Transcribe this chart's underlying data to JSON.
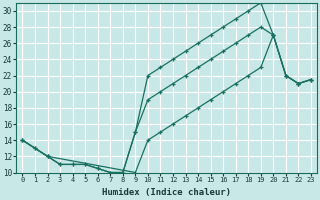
{
  "xlabel": "Humidex (Indice chaleur)",
  "bg_color": "#c8e8e8",
  "grid_color": "#ffffff",
  "line_color": "#1a7060",
  "xlim": [
    -0.5,
    23.5
  ],
  "ylim": [
    10,
    31
  ],
  "xticks": [
    0,
    1,
    2,
    3,
    4,
    5,
    6,
    7,
    8,
    9,
    10,
    11,
    12,
    13,
    14,
    15,
    16,
    17,
    18,
    19,
    20,
    21,
    22,
    23
  ],
  "yticks": [
    10,
    12,
    14,
    16,
    18,
    20,
    22,
    24,
    26,
    28,
    30
  ],
  "line1_x": [
    0,
    1,
    2,
    3,
    4,
    5,
    6,
    7,
    8,
    9,
    10,
    11,
    12,
    13,
    14,
    15,
    16,
    17,
    18,
    19,
    20,
    21,
    22,
    23
  ],
  "line1_y": [
    14,
    13,
    12,
    11,
    11,
    11,
    10.5,
    10,
    10,
    15,
    19,
    20,
    21,
    22,
    23,
    24,
    25,
    26,
    27,
    28,
    27,
    22,
    21,
    21.5
  ],
  "line2_x": [
    0,
    1,
    2,
    3,
    4,
    5,
    6,
    7,
    8,
    9,
    10,
    11,
    12,
    13,
    14,
    15,
    16,
    17,
    18,
    19,
    20,
    21,
    22,
    23
  ],
  "line2_y": [
    14,
    13,
    12,
    11,
    11,
    11,
    10.5,
    10,
    10,
    15,
    22,
    23,
    24,
    25,
    26,
    27,
    28,
    29,
    30,
    31,
    27,
    22,
    21,
    21.5
  ],
  "line3_x": [
    0,
    2,
    9,
    10,
    11,
    12,
    13,
    14,
    15,
    16,
    17,
    18,
    19,
    20,
    21,
    22,
    23
  ],
  "line3_y": [
    14,
    12,
    10,
    14,
    15,
    16,
    17,
    18,
    19,
    20,
    21,
    22,
    23,
    27,
    22,
    21,
    21.5
  ]
}
